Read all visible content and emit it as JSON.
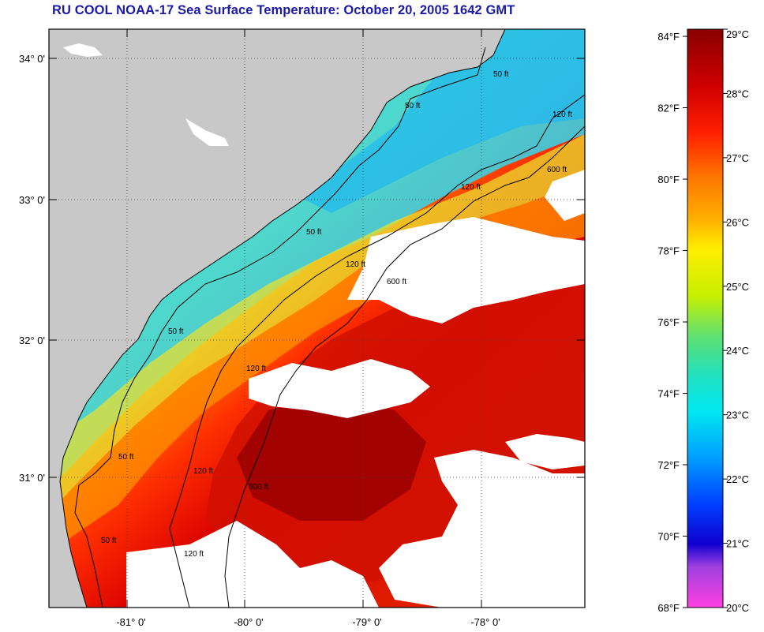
{
  "title": "RU COOL  NOAA-17  Sea Surface Temperature:  October 20, 2005 1642 GMT",
  "map": {
    "lat_labels": [
      "34° 0'",
      "33° 0'",
      "32° 0'",
      "31° 0'"
    ],
    "lon_labels": [
      "-81° 0'",
      "-80° 0'",
      "-79° 0'",
      "-78° 0'"
    ],
    "contour_labels": [
      "50 ft",
      "50 ft",
      "50 ft",
      "50 ft",
      "50 ft",
      "50 ft",
      "120 ft",
      "120 ft",
      "120 ft",
      "120 ft",
      "120 ft",
      "120 ft",
      "600 ft",
      "600 ft",
      "600 ft"
    ],
    "colors": {
      "land": "#c8c8c8",
      "cloud": "#ffffff",
      "frame": "#000000"
    }
  },
  "colorbar": {
    "fahrenheit_labels": [
      "84°F",
      "82°F",
      "80°F",
      "78°F",
      "76°F",
      "74°F",
      "72°F",
      "70°F",
      "68°F"
    ],
    "celsius_labels": [
      "29°C",
      "28°C",
      "27°C",
      "26°C",
      "25°C",
      "24°C",
      "23°C",
      "22°C",
      "21°C",
      "20°C"
    ],
    "celsius_range": [
      20,
      29
    ]
  }
}
